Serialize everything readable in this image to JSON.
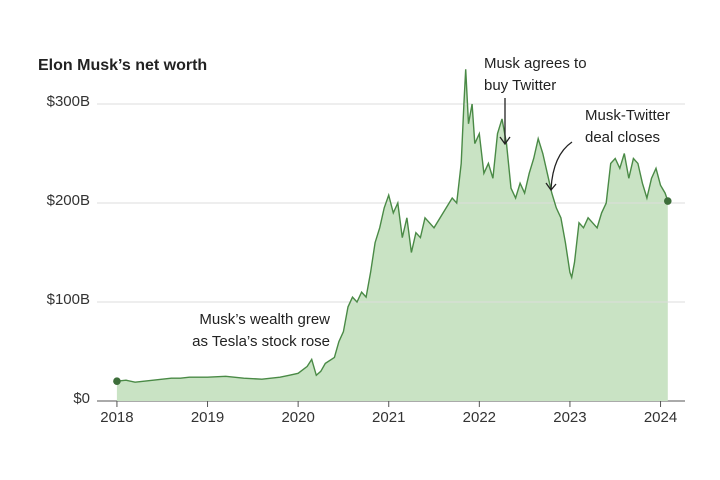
{
  "chart_data": {
    "type": "area",
    "title": "Elon Musk’s net worth",
    "color": "#4a8a46",
    "fill": "#c9e3c4",
    "grid": true,
    "xlim": [
      2017.78,
      2024.27
    ],
    "ylim": [
      0,
      300
    ],
    "xticks": [
      2018,
      2019,
      2020,
      2021,
      2022,
      2023,
      2024
    ],
    "yticks": [
      {
        "value": 0,
        "label": "$0"
      },
      {
        "value": 100,
        "label": "$100B"
      },
      {
        "value": 200,
        "label": "$200B"
      },
      {
        "value": 300,
        "label": "$300B"
      }
    ],
    "x": [
      2018.0,
      2018.1,
      2018.2,
      2018.3,
      2018.4,
      2018.5,
      2018.6,
      2018.7,
      2018.8,
      2018.9,
      2019.0,
      2019.2,
      2019.4,
      2019.6,
      2019.8,
      2019.9,
      2020.0,
      2020.1,
      2020.15,
      2020.2,
      2020.25,
      2020.3,
      2020.4,
      2020.45,
      2020.5,
      2020.55,
      2020.6,
      2020.65,
      2020.7,
      2020.75,
      2020.8,
      2020.85,
      2020.9,
      2020.95,
      2021.0,
      2021.05,
      2021.1,
      2021.15,
      2021.2,
      2021.25,
      2021.3,
      2021.35,
      2021.4,
      2021.5,
      2021.6,
      2021.7,
      2021.75,
      2021.8,
      2021.83,
      2021.85,
      2021.88,
      2021.92,
      2021.95,
      2022.0,
      2022.05,
      2022.1,
      2022.15,
      2022.2,
      2022.25,
      2022.3,
      2022.35,
      2022.4,
      2022.45,
      2022.5,
      2022.55,
      2022.6,
      2022.65,
      2022.7,
      2022.75,
      2022.8,
      2022.85,
      2022.9,
      2022.95,
      2023.0,
      2023.02,
      2023.05,
      2023.1,
      2023.15,
      2023.2,
      2023.25,
      2023.3,
      2023.35,
      2023.4,
      2023.45,
      2023.5,
      2023.55,
      2023.6,
      2023.65,
      2023.7,
      2023.75,
      2023.8,
      2023.85,
      2023.9,
      2023.95,
      2024.0,
      2024.05,
      2024.08
    ],
    "values": [
      20,
      21,
      19,
      20,
      21,
      22,
      23,
      23,
      24,
      24,
      24,
      25,
      23,
      22,
      24,
      26,
      28,
      35,
      42,
      26,
      30,
      38,
      44,
      60,
      70,
      95,
      105,
      100,
      110,
      105,
      130,
      160,
      175,
      195,
      208,
      190,
      200,
      165,
      185,
      150,
      170,
      165,
      185,
      175,
      190,
      205,
      200,
      240,
      300,
      335,
      280,
      300,
      260,
      270,
      230,
      240,
      225,
      270,
      285,
      260,
      215,
      205,
      220,
      210,
      230,
      245,
      265,
      250,
      230,
      210,
      195,
      185,
      160,
      130,
      125,
      140,
      180,
      175,
      185,
      180,
      175,
      190,
      200,
      240,
      245,
      235,
      250,
      225,
      245,
      240,
      220,
      205,
      225,
      235,
      218,
      210,
      202
    ],
    "annotations": [
      [
        "Musk agrees to",
        "buy Twitter"
      ],
      [
        "Musk-Twitter",
        "deal closes"
      ],
      [
        "Musk’s wealth grew",
        "as Tesla’s stock rose"
      ]
    ]
  }
}
